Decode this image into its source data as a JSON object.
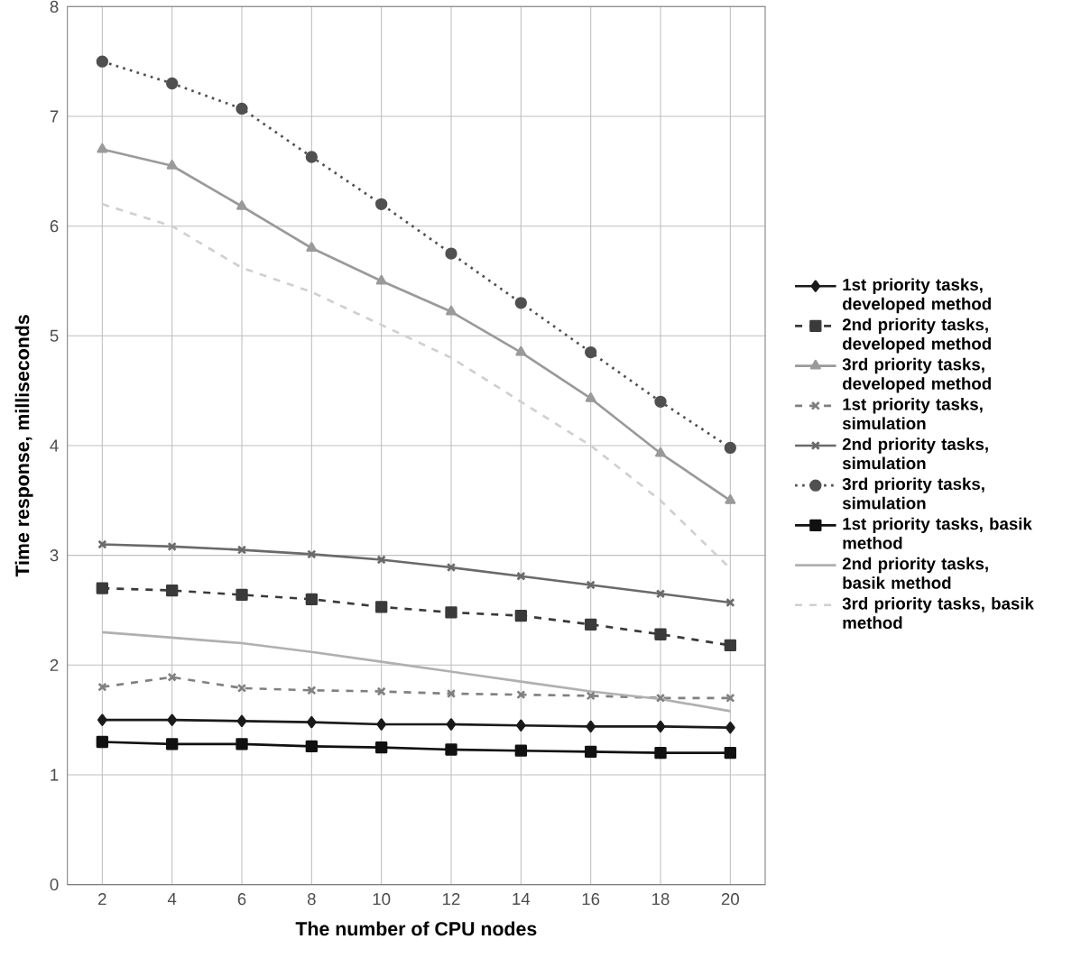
{
  "chart_data": {
    "type": "line",
    "xlabel": "The number of CPU nodes",
    "ylabel": "Time response, milliseconds",
    "x": [
      2,
      4,
      6,
      8,
      10,
      12,
      14,
      16,
      18,
      20
    ],
    "xlim": [
      1,
      21
    ],
    "xticks": [
      2,
      4,
      6,
      8,
      10,
      12,
      14,
      16,
      18,
      20
    ],
    "ylim": [
      0,
      8
    ],
    "yticks": [
      0,
      1,
      2,
      3,
      4,
      5,
      6,
      7,
      8
    ],
    "grid": true,
    "legend": "right",
    "series": [
      {
        "name": "1st priority tasks, developed method",
        "color": "#1a1a1a",
        "marker": "diamond",
        "line_style": "solid",
        "values": [
          1.5,
          1.5,
          1.49,
          1.48,
          1.46,
          1.46,
          1.45,
          1.44,
          1.44,
          1.43
        ]
      },
      {
        "name": "2nd priority tasks, developed method",
        "color": "#3a3a3a",
        "marker": "square",
        "line_style": "dashed",
        "values": [
          2.7,
          2.68,
          2.64,
          2.6,
          2.53,
          2.48,
          2.45,
          2.37,
          2.28,
          2.18
        ]
      },
      {
        "name": "3rd priority tasks, developed method",
        "color": "#9a9a9a",
        "marker": "triangle",
        "line_style": "solid",
        "values": [
          6.7,
          6.55,
          6.18,
          5.8,
          5.5,
          5.22,
          4.85,
          4.43,
          3.93,
          3.5
        ]
      },
      {
        "name": "1st priority tasks, simulation",
        "color": "#808080",
        "marker": "cross",
        "line_style": "dashed",
        "values": [
          1.8,
          1.89,
          1.79,
          1.77,
          1.76,
          1.74,
          1.73,
          1.72,
          1.7,
          1.7
        ]
      },
      {
        "name": "2nd priority tasks, simulation",
        "color": "#6a6a6a",
        "marker": "cross",
        "line_style": "solid",
        "values": [
          3.1,
          3.08,
          3.05,
          3.01,
          2.96,
          2.89,
          2.81,
          2.73,
          2.65,
          2.57
        ]
      },
      {
        "name": "3rd priority tasks, simulation",
        "color": "#505050",
        "marker": "circle",
        "line_style": "dotted",
        "values": [
          7.5,
          7.3,
          7.07,
          6.63,
          6.2,
          5.75,
          5.3,
          4.85,
          4.4,
          3.98
        ]
      },
      {
        "name": "1st priority tasks, basik method",
        "color": "#111111",
        "marker": "square",
        "line_style": "solid",
        "values": [
          1.3,
          1.28,
          1.28,
          1.26,
          1.25,
          1.23,
          1.22,
          1.21,
          1.2,
          1.2
        ]
      },
      {
        "name": "2nd priority tasks, basik method",
        "color": "#b0b0b0",
        "marker": "none",
        "line_style": "solid",
        "values": [
          2.3,
          2.25,
          2.2,
          2.12,
          2.03,
          1.94,
          1.85,
          1.76,
          1.69,
          1.58
        ]
      },
      {
        "name": "3rd priority tasks, basik method",
        "color": "#d0d0d0",
        "marker": "none",
        "line_style": "dashed",
        "values": [
          6.2,
          6.0,
          5.62,
          5.4,
          5.1,
          4.8,
          4.4,
          4.0,
          3.5,
          2.88
        ]
      }
    ]
  }
}
